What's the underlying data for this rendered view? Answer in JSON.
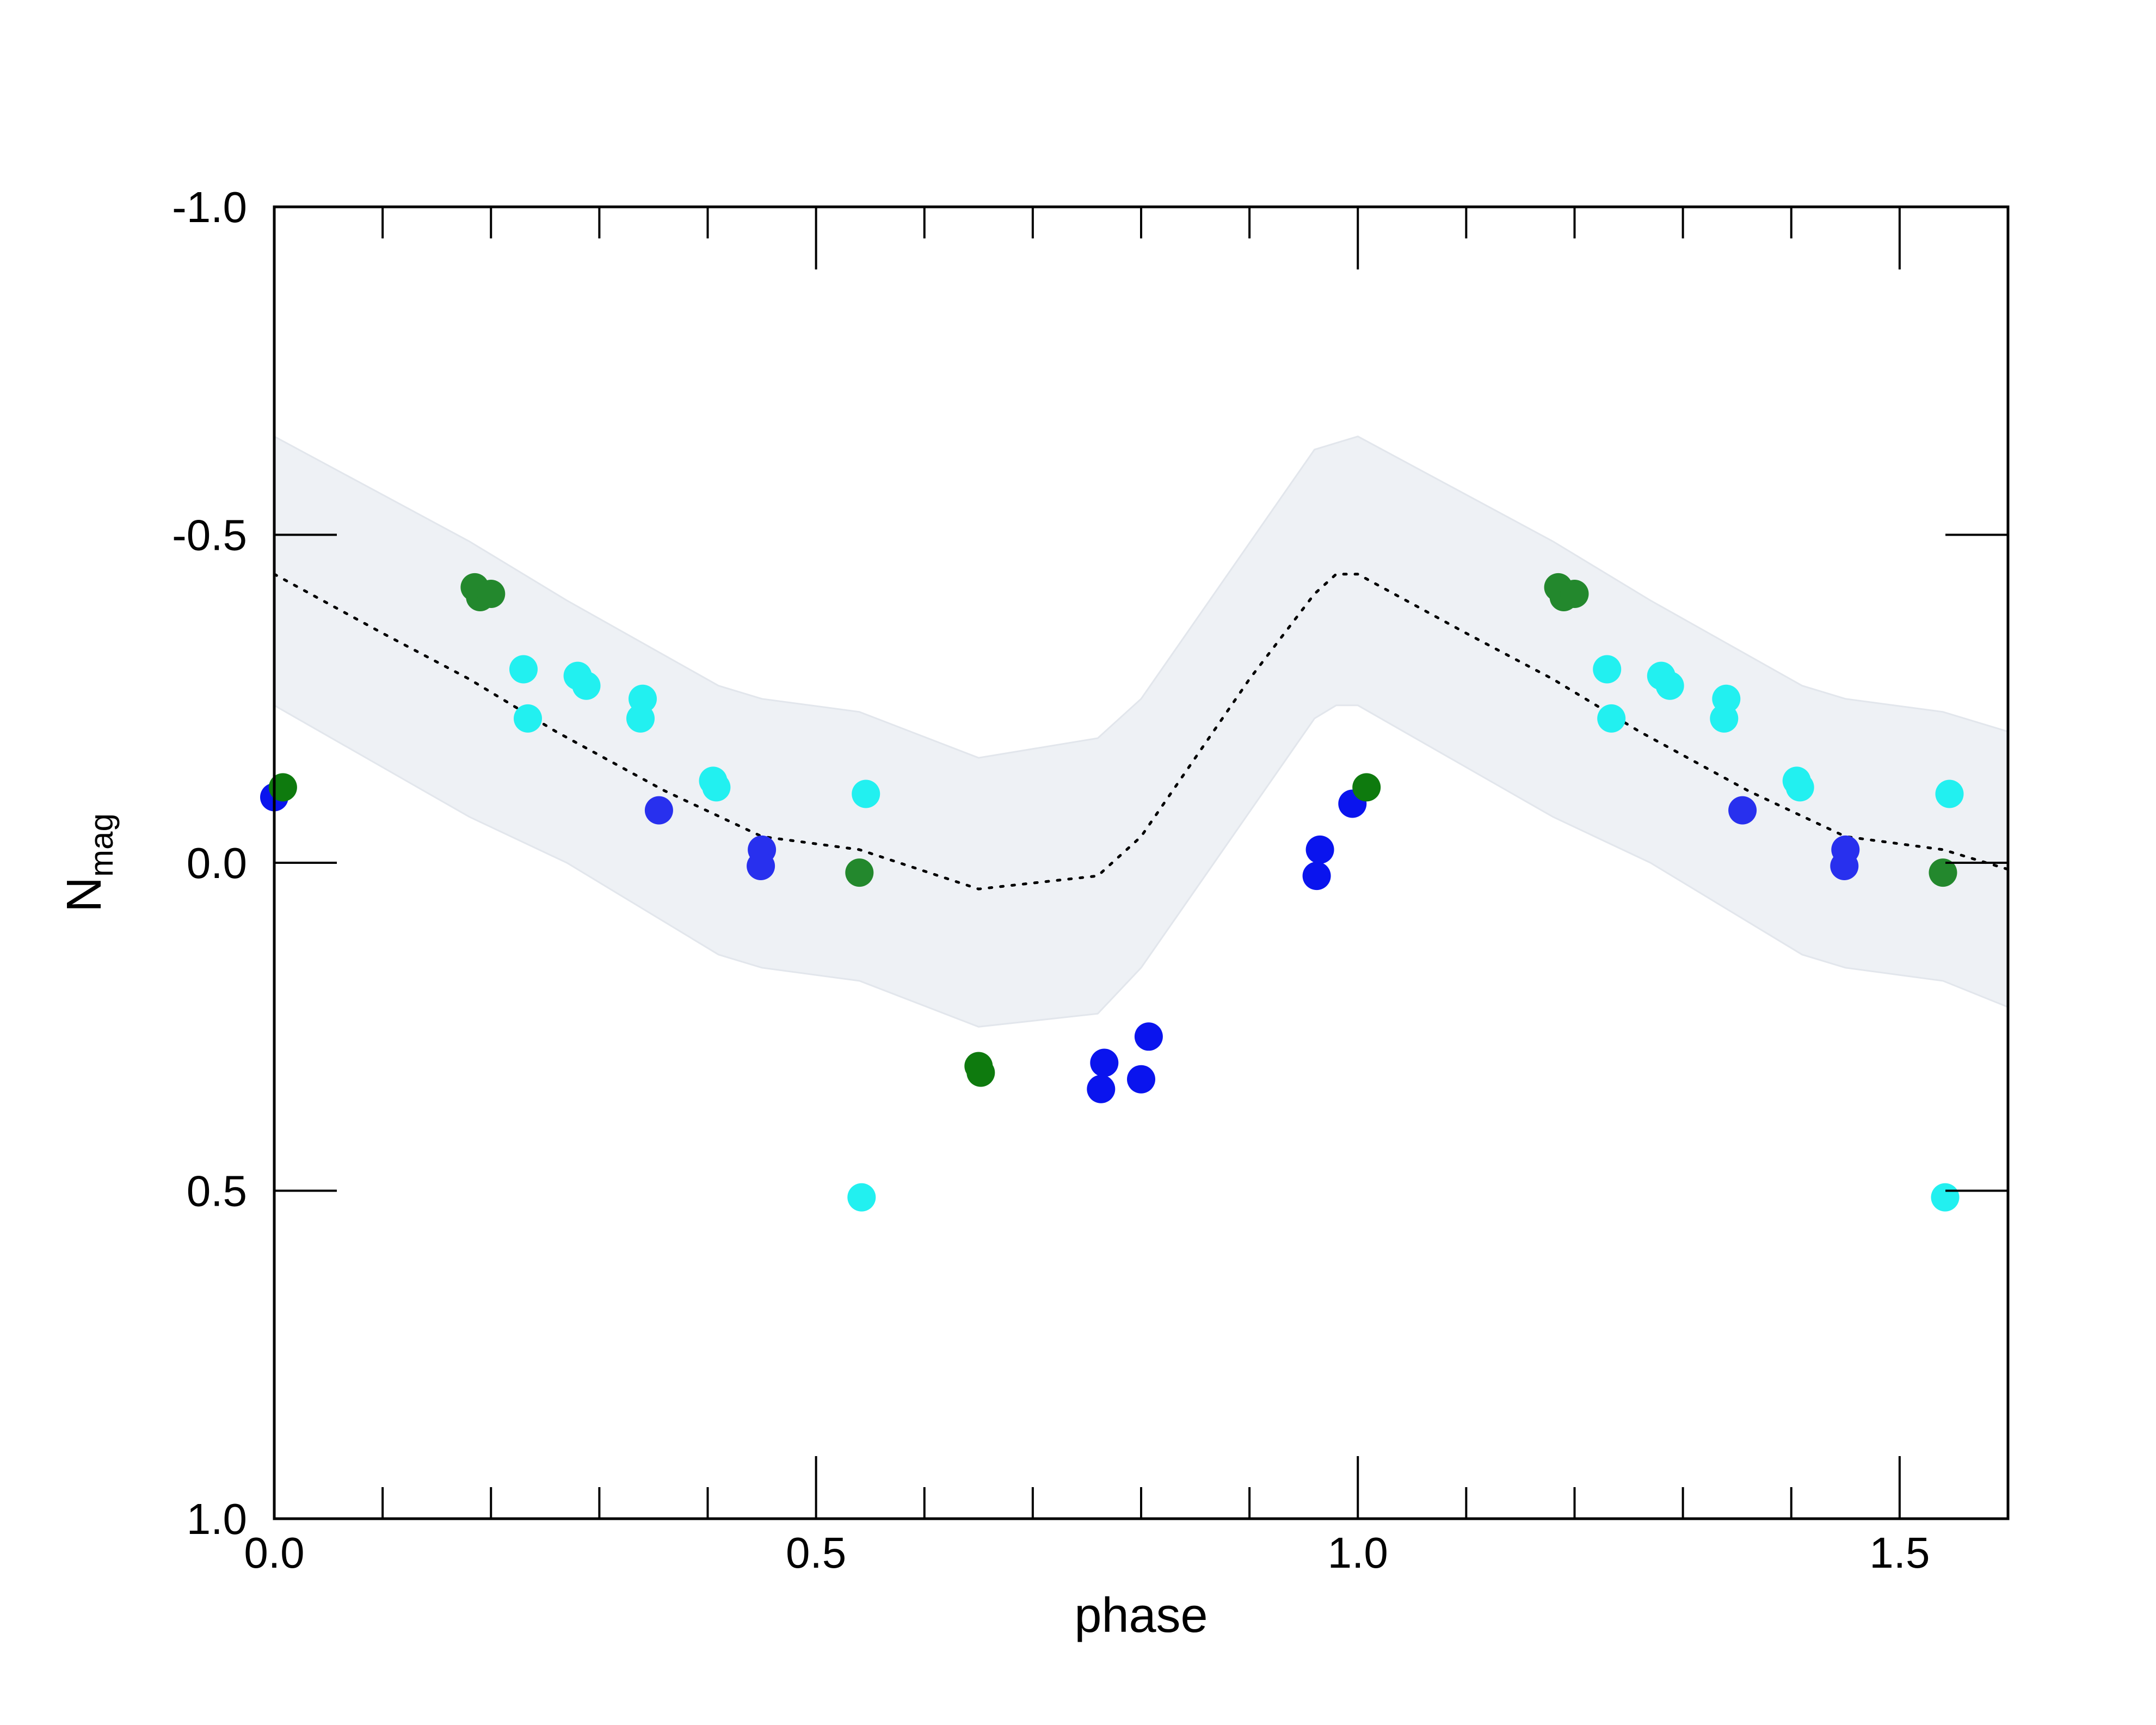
{
  "chart_data": {
    "type": "scatter",
    "title": "",
    "xlabel": "phase",
    "ylabel": "N",
    "ylabel_sub": "mag",
    "xlim": [
      0.0,
      1.6
    ],
    "ylim": [
      1.0,
      -1.0
    ],
    "y_inverted": true,
    "x_major_ticks": [
      0.0,
      0.5,
      1.0,
      1.5
    ],
    "x_major_tick_labels": [
      "0.0",
      "0.5",
      "1.0",
      "1.5"
    ],
    "x_minor_ticks": [
      0.1,
      0.2,
      0.3,
      0.4,
      0.6,
      0.7,
      0.8,
      0.9,
      1.1,
      1.2,
      1.3,
      1.4
    ],
    "y_major_ticks": [
      -1.0,
      -0.5,
      0.0,
      0.5,
      1.0
    ],
    "y_major_tick_labels": [
      "-1.0",
      "-0.5",
      "0.0",
      "0.5",
      "1.0"
    ],
    "grid": false,
    "legend": "none",
    "colors": {
      "band": "#eef1f5",
      "band_edge": "#e2e6ec",
      "model": "#000000",
      "blue": "#0a14ee",
      "blue_light": "#2830ee",
      "cyan": "#22f0f0",
      "green": "#0e7a0e",
      "green_light": "#23882d"
    },
    "model_curve": {
      "x": [
        0.0,
        0.1,
        0.18,
        0.26,
        0.36,
        0.45,
        0.54,
        0.65,
        0.76,
        0.8,
        0.9,
        0.96,
        0.98,
        1.0,
        1.1,
        1.18,
        1.26,
        1.36,
        1.45,
        1.54,
        1.6
      ],
      "y": [
        -0.44,
        -0.35,
        -0.28,
        -0.2,
        -0.11,
        -0.04,
        -0.02,
        0.04,
        0.02,
        -0.04,
        -0.28,
        -0.41,
        -0.44,
        -0.44,
        -0.35,
        -0.28,
        -0.2,
        -0.11,
        -0.04,
        -0.02,
        0.01
      ]
    },
    "band_upper": {
      "x": [
        0.0,
        0.18,
        0.27,
        0.41,
        0.45,
        0.54,
        0.65,
        0.76,
        0.8,
        0.96,
        0.98,
        1.0,
        1.18,
        1.27,
        1.41,
        1.45,
        1.54,
        1.6
      ],
      "y": [
        -0.65,
        -0.49,
        -0.4,
        -0.27,
        -0.25,
        -0.23,
        -0.16,
        -0.19,
        -0.25,
        -0.63,
        -0.64,
        -0.65,
        -0.49,
        -0.4,
        -0.27,
        -0.25,
        -0.23,
        -0.2
      ]
    },
    "band_lower": {
      "x": [
        0.0,
        0.18,
        0.27,
        0.41,
        0.45,
        0.54,
        0.65,
        0.76,
        0.8,
        0.96,
        0.98,
        1.0,
        1.18,
        1.27,
        1.41,
        1.45,
        1.54,
        1.6
      ],
      "y": [
        -0.24,
        -0.07,
        0.0,
        0.14,
        0.16,
        0.18,
        0.25,
        0.23,
        0.16,
        -0.22,
        -0.24,
        -0.24,
        -0.07,
        0.0,
        0.14,
        0.16,
        0.18,
        0.22
      ]
    },
    "series": [
      {
        "color": "#0a14ee",
        "points": [
          {
            "x": 0.0,
            "y": -0.1
          },
          {
            "x": 0.962,
            "y": 0.02
          },
          {
            "x": 0.965,
            "y": -0.02
          },
          {
            "x": 0.995,
            "y": -0.09
          },
          {
            "x": 0.763,
            "y": 0.345
          },
          {
            "x": 0.766,
            "y": 0.305
          },
          {
            "x": 0.8,
            "y": 0.33
          },
          {
            "x": 0.807,
            "y": 0.265
          }
        ]
      },
      {
        "color": "#2830ee",
        "points": [
          {
            "x": 0.355,
            "y": -0.08
          },
          {
            "x": 0.45,
            "y": -0.02
          },
          {
            "x": 0.449,
            "y": 0.005
          },
          {
            "x": 1.355,
            "y": -0.08
          },
          {
            "x": 1.45,
            "y": -0.02
          },
          {
            "x": 1.449,
            "y": 0.005
          }
        ]
      },
      {
        "color": "#22f0f0",
        "points": [
          {
            "x": 0.23,
            "y": -0.295
          },
          {
            "x": 0.234,
            "y": -0.22
          },
          {
            "x": 0.28,
            "y": -0.285
          },
          {
            "x": 0.288,
            "y": -0.27
          },
          {
            "x": 0.34,
            "y": -0.25
          },
          {
            "x": 0.338,
            "y": -0.22
          },
          {
            "x": 0.405,
            "y": -0.125
          },
          {
            "x": 0.408,
            "y": -0.115
          },
          {
            "x": 0.546,
            "y": -0.105
          },
          {
            "x": 0.542,
            "y": 0.51
          },
          {
            "x": 1.23,
            "y": -0.295
          },
          {
            "x": 1.234,
            "y": -0.22
          },
          {
            "x": 1.28,
            "y": -0.285
          },
          {
            "x": 1.288,
            "y": -0.27
          },
          {
            "x": 1.34,
            "y": -0.25
          },
          {
            "x": 1.338,
            "y": -0.22
          },
          {
            "x": 1.405,
            "y": -0.125
          },
          {
            "x": 1.408,
            "y": -0.115
          },
          {
            "x": 1.546,
            "y": -0.105
          },
          {
            "x": 1.542,
            "y": 0.51
          }
        ]
      },
      {
        "color": "#0e7a0e",
        "points": [
          {
            "x": 0.008,
            "y": -0.115
          },
          {
            "x": 0.65,
            "y": 0.31
          },
          {
            "x": 0.652,
            "y": 0.32
          },
          {
            "x": 1.008,
            "y": -0.115
          }
        ]
      },
      {
        "color": "#23882d",
        "points": [
          {
            "x": 0.19,
            "y": -0.405
          },
          {
            "x": 0.185,
            "y": -0.42
          },
          {
            "x": 0.2,
            "y": -0.41
          },
          {
            "x": 0.54,
            "y": 0.015
          },
          {
            "x": 1.19,
            "y": -0.405
          },
          {
            "x": 1.185,
            "y": -0.42
          },
          {
            "x": 1.2,
            "y": -0.41
          },
          {
            "x": 1.54,
            "y": 0.015
          }
        ]
      }
    ]
  }
}
